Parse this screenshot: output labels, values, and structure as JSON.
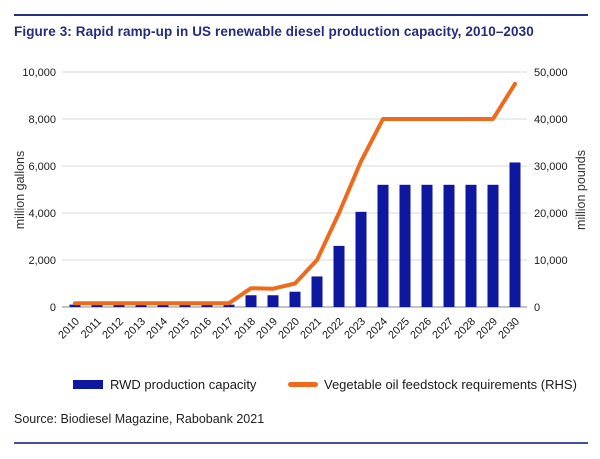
{
  "figure": {
    "title": "Figure 3: Rapid ramp-up in US renewable diesel production capacity, 2010–2030",
    "source": "Source: Biodiesel Magazine, Rabobank 2021"
  },
  "legend": {
    "bar_label": "RWD production capacity",
    "line_label": "Vegetable oil feedstock requirements (RHS)"
  },
  "colors": {
    "bar": "#0d17a0",
    "line": "#ee6b1e",
    "title_navy": "#252b7e",
    "grid": "#d9d9d9",
    "axis_line": "#a0a0a0",
    "tick_text": "#1a1a1a",
    "axis_title_text": "#333333",
    "rule_top": "#2b2f80",
    "rule_bottom": "#4150a6"
  },
  "chart_data": {
    "type": "bar",
    "title": "Figure 3: Rapid ramp-up in US renewable diesel production capacity, 2010–2030",
    "categories": [
      "2010",
      "2011",
      "2012",
      "2013",
      "2014",
      "2015",
      "2016",
      "2017",
      "2018",
      "2019",
      "2020",
      "2021",
      "2022",
      "2023",
      "2024",
      "2025",
      "2026",
      "2027",
      "2028",
      "2029",
      "2030"
    ],
    "series": [
      {
        "name": "RWD production capacity",
        "type": "bar",
        "axis": "left",
        "values": [
          100,
          100,
          100,
          100,
          100,
          100,
          100,
          100,
          500,
          500,
          650,
          1300,
          2600,
          4050,
          5200,
          5200,
          5200,
          5200,
          5200,
          5200,
          6150
        ]
      },
      {
        "name": "Vegetable oil feedstock requirements (RHS)",
        "type": "line",
        "axis": "right",
        "values": [
          800,
          800,
          800,
          800,
          800,
          800,
          800,
          800,
          4000,
          3900,
          5000,
          10000,
          20000,
          31000,
          40000,
          40000,
          40000,
          40000,
          40000,
          40000,
          47500
        ]
      }
    ],
    "xlabel": "",
    "left_ylabel": "million gallons",
    "right_ylabel": "million pounds",
    "left_ylim": [
      0,
      10000
    ],
    "right_ylim": [
      0,
      50000
    ],
    "left_yticks": [
      "0",
      "2,000",
      "4,000",
      "6,000",
      "8,000",
      "10,000"
    ],
    "right_yticks": [
      "0",
      "10,000",
      "20,000",
      "30,000",
      "40,000",
      "50,000"
    ],
    "grid": true,
    "legend_position": "bottom"
  }
}
